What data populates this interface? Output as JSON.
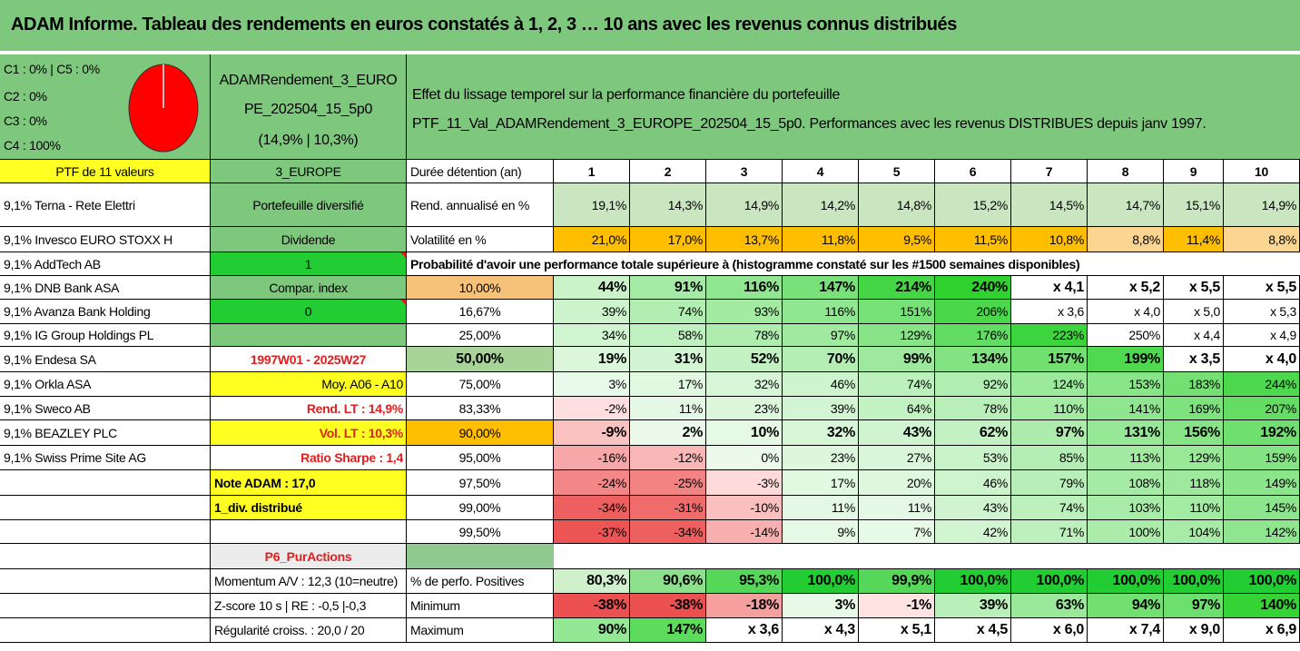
{
  "title": "ADAM Informe. Tableau des rendements en euros constatés à 1, 2, 3 … 10 ans avec les revenus connus distribués",
  "pie": {
    "labels": [
      "C1 : 0% | C5 : 0%",
      "C2 : 0%",
      "C3 : 0%",
      "C4 : 100%"
    ],
    "chart_data": {
      "type": "pie",
      "categories": [
        "C1",
        "C2",
        "C3",
        "C4",
        "C5"
      ],
      "values": [
        0,
        0,
        0,
        100,
        0
      ],
      "colors": [
        "#1f4e9c",
        "#7bb1e0",
        "#f0a030",
        "#ff0000",
        "#888888"
      ]
    }
  },
  "fund": {
    "name_line1": "ADAMRendement_3_EURO",
    "name_line2": "PE_202504_15_5p0",
    "name_line3": "(14,9% | 10,3%)"
  },
  "effect": {
    "line1": "Effet du lissage temporel sur la performance financière du portefeuille",
    "line2": "PTF_11_Val_ADAMRendement_3_EUROPE_202504_15_5p0. Performances avec les revenus DISTRIBUES depuis janv 1997."
  },
  "left": {
    "header": "PTF de 11 valeurs",
    "holdings": [
      "9,1% Terna - Rete Elettri",
      "9,1% Invesco EURO STOXX H",
      "9,1% AddTech AB",
      "9,1% DNB Bank ASA",
      "9,1% Avanza Bank Holding",
      "9,1% IG Group Holdings PL",
      "9,1% Endesa SA",
      "9,1% Orkla ASA",
      "9,1% Sweco AB",
      "9,1% BEAZLEY PLC",
      "9,1% Swiss Prime Site AG"
    ]
  },
  "mid": {
    "zone": "3_EUROPE",
    "portfolio_type": "Portefeuille diversifié",
    "dividende_label": "Dividende",
    "dividende_value": "1",
    "compar_label": "Compar. index",
    "compar_value": "0",
    "period": "1997W01 - 2025W27",
    "moy": "Moy. A06 - A10",
    "rend_lt": "Rend. LT : 14,9%",
    "vol_lt": "Vol. LT : 10,3%",
    "sharpe": "Ratio Sharpe : 1,4",
    "note": "Note ADAM : 17,0",
    "div": "1_div. distribué",
    "p6": "P6_PurActions",
    "momentum": "Momentum A/V : 12,3 (10=neutre)",
    "zscore": "Z-score 10 s | RE : -0,5 |-0,3",
    "regularite": "Régularité croiss. : 20,0 / 20"
  },
  "table": {
    "duree_label": "Durée détention (an)",
    "years": [
      "1",
      "2",
      "3",
      "4",
      "5",
      "6",
      "7",
      "8",
      "9",
      "10"
    ],
    "rend_label": "Rend. annualisé en %",
    "rend": [
      "19,1%",
      "14,3%",
      "14,9%",
      "14,2%",
      "14,8%",
      "15,2%",
      "14,5%",
      "14,7%",
      "15,1%",
      "14,9%"
    ],
    "vol_label": "Volatilité en %",
    "vol": [
      "21,0%",
      "17,0%",
      "13,7%",
      "11,8%",
      "9,5%",
      "11,5%",
      "10,8%",
      "8,8%",
      "11,4%",
      "8,8%"
    ],
    "prob_header": "Probabilité d'avoir une performance totale supérieure à (histogramme constaté sur les #1500 semaines disponibles)",
    "prob_rows": [
      {
        "p": "10,00%",
        "v": [
          "44%",
          "91%",
          "116%",
          "147%",
          "214%",
          "240%",
          "x 4,1",
          "x 5,2",
          "x 5,5",
          "x 5,5"
        ]
      },
      {
        "p": "16,67%",
        "v": [
          "39%",
          "74%",
          "93%",
          "116%",
          "151%",
          "206%",
          "x 3,6",
          "x 4,0",
          "x 5,0",
          "x 5,3"
        ]
      },
      {
        "p": "25,00%",
        "v": [
          "34%",
          "58%",
          "78%",
          "97%",
          "129%",
          "176%",
          "223%",
          "250%",
          "x 4,4",
          "x 4,9"
        ]
      },
      {
        "p": "50,00%",
        "v": [
          "19%",
          "31%",
          "52%",
          "70%",
          "99%",
          "134%",
          "157%",
          "199%",
          "x 3,5",
          "x 4,0"
        ]
      },
      {
        "p": "75,00%",
        "v": [
          "3%",
          "17%",
          "32%",
          "46%",
          "74%",
          "92%",
          "124%",
          "153%",
          "183%",
          "244%"
        ]
      },
      {
        "p": "83,33%",
        "v": [
          "-2%",
          "11%",
          "23%",
          "39%",
          "64%",
          "78%",
          "110%",
          "141%",
          "169%",
          "207%"
        ]
      },
      {
        "p": "90,00%",
        "v": [
          "-9%",
          "2%",
          "10%",
          "32%",
          "43%",
          "62%",
          "97%",
          "131%",
          "156%",
          "192%"
        ]
      },
      {
        "p": "95,00%",
        "v": [
          "-16%",
          "-12%",
          "0%",
          "23%",
          "27%",
          "53%",
          "85%",
          "113%",
          "129%",
          "159%"
        ]
      },
      {
        "p": "97,50%",
        "v": [
          "-24%",
          "-25%",
          "-3%",
          "17%",
          "20%",
          "46%",
          "79%",
          "108%",
          "118%",
          "149%"
        ]
      },
      {
        "p": "99,00%",
        "v": [
          "-34%",
          "-31%",
          "-10%",
          "11%",
          "11%",
          "43%",
          "74%",
          "103%",
          "110%",
          "145%"
        ]
      },
      {
        "p": "99,50%",
        "v": [
          "-37%",
          "-34%",
          "-14%",
          "9%",
          "7%",
          "42%",
          "71%",
          "100%",
          "104%",
          "142%"
        ]
      }
    ],
    "pos_label": "% de perfo. Positives",
    "pos": [
      "80,3%",
      "90,6%",
      "95,3%",
      "100,0%",
      "99,9%",
      "100,0%",
      "100,0%",
      "100,0%",
      "100,0%",
      "100,0%"
    ],
    "min_label": "Minimum",
    "min": [
      "-38%",
      "-38%",
      "-18%",
      "3%",
      "-1%",
      "39%",
      "63%",
      "94%",
      "97%",
      "140%"
    ],
    "max_label": "Maximum",
    "max": [
      "90%",
      "147%",
      "x 3,6",
      "x 4,3",
      "x 5,1",
      "x 4,5",
      "x 6,0",
      "x 7,4",
      "x 9,0",
      "x 6,9"
    ]
  }
}
